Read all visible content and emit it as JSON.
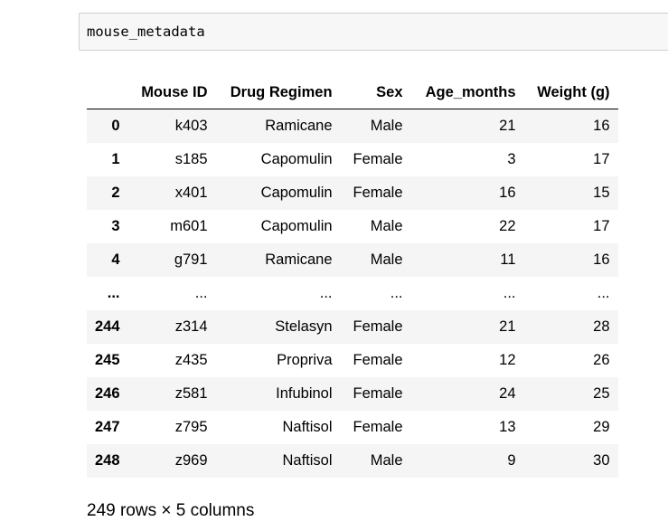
{
  "code_cell": {
    "code": "mouse_metadata"
  },
  "table": {
    "columns": [
      "",
      "Mouse ID",
      "Drug Regimen",
      "Sex",
      "Age_months",
      "Weight (g)"
    ],
    "rows": [
      {
        "index": "0",
        "mouse_id": "k403",
        "drug_regimen": "Ramicane",
        "sex": "Male",
        "age_months": "21",
        "weight": "16"
      },
      {
        "index": "1",
        "mouse_id": "s185",
        "drug_regimen": "Capomulin",
        "sex": "Female",
        "age_months": "3",
        "weight": "17"
      },
      {
        "index": "2",
        "mouse_id": "x401",
        "drug_regimen": "Capomulin",
        "sex": "Female",
        "age_months": "16",
        "weight": "15"
      },
      {
        "index": "3",
        "mouse_id": "m601",
        "drug_regimen": "Capomulin",
        "sex": "Male",
        "age_months": "22",
        "weight": "17"
      },
      {
        "index": "4",
        "mouse_id": "g791",
        "drug_regimen": "Ramicane",
        "sex": "Male",
        "age_months": "11",
        "weight": "16"
      },
      {
        "index": "...",
        "mouse_id": "...",
        "drug_regimen": "...",
        "sex": "...",
        "age_months": "...",
        "weight": "..."
      },
      {
        "index": "244",
        "mouse_id": "z314",
        "drug_regimen": "Stelasyn",
        "sex": "Female",
        "age_months": "21",
        "weight": "28"
      },
      {
        "index": "245",
        "mouse_id": "z435",
        "drug_regimen": "Propriva",
        "sex": "Female",
        "age_months": "12",
        "weight": "26"
      },
      {
        "index": "246",
        "mouse_id": "z581",
        "drug_regimen": "Infubinol",
        "sex": "Female",
        "age_months": "24",
        "weight": "25"
      },
      {
        "index": "247",
        "mouse_id": "z795",
        "drug_regimen": "Naftisol",
        "sex": "Female",
        "age_months": "13",
        "weight": "29"
      },
      {
        "index": "248",
        "mouse_id": "z969",
        "drug_regimen": "Naftisol",
        "sex": "Male",
        "age_months": "9",
        "weight": "30"
      }
    ]
  },
  "shape_summary": "249 rows × 5 columns"
}
